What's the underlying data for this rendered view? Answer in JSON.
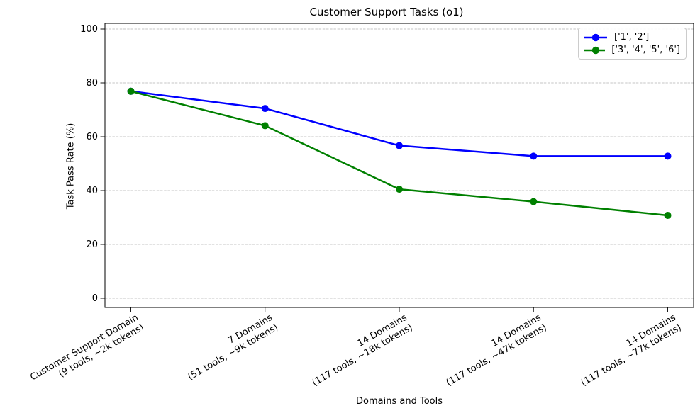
{
  "chart_data": {
    "type": "line",
    "title": "Customer Support Tasks (o1)",
    "xlabel": "Domains and Tools",
    "ylabel": "Task Pass Rate (%)",
    "ylim": [
      0,
      100
    ],
    "yticks": [
      0,
      20,
      40,
      60,
      80,
      100
    ],
    "grid": "horizontal dashed lightgray",
    "legend_position": "upper right",
    "categories": [
      [
        "Customer Support Domain",
        "(9 tools, ~2k tokens)"
      ],
      [
        "7 Domains",
        "(51 tools, ~9k tokens)"
      ],
      [
        "14 Domains",
        "(117 tools, ~18k tokens)"
      ],
      [
        "14 Domains",
        "(117 tools, ~47k tokens)"
      ],
      [
        "14 Domains",
        "(117 tools, ~77k tokens)"
      ]
    ],
    "series": [
      {
        "name": "['1', '2']",
        "color": "#0000ff",
        "values": [
          76.9,
          70.5,
          56.7,
          52.8,
          52.8
        ]
      },
      {
        "name": "['3', '4', '5', '6']",
        "color": "#008000",
        "values": [
          76.9,
          64.1,
          40.5,
          35.9,
          30.8
        ]
      }
    ]
  }
}
